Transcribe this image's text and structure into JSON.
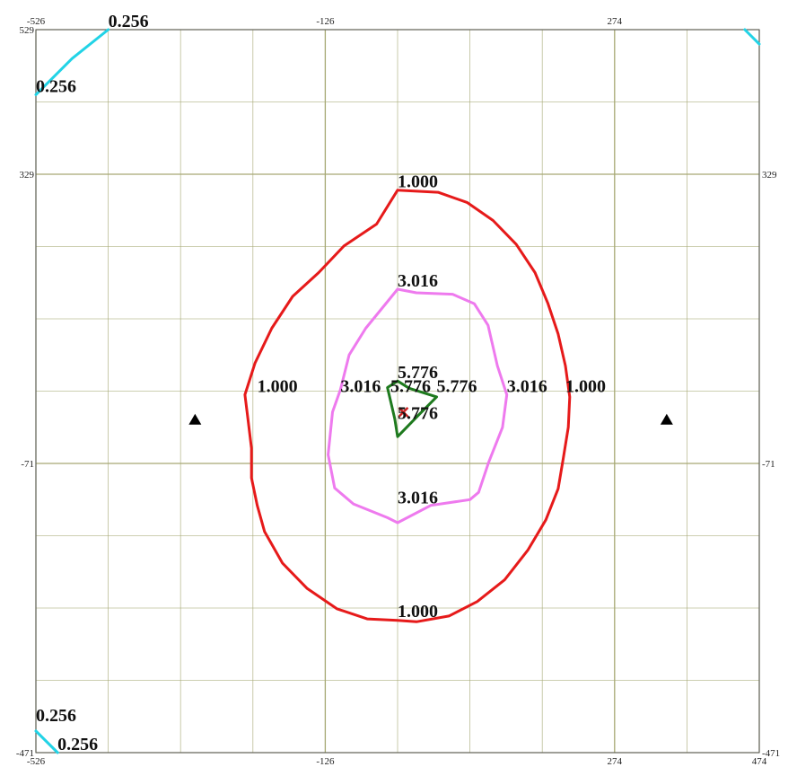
{
  "chart_data": {
    "type": "contour",
    "xlim": [
      -526,
      474
    ],
    "ylim": [
      -471,
      529
    ],
    "grid": true,
    "grid_color": "#a6a874",
    "x_tick_labels_top": [
      "-526",
      "-126",
      "274"
    ],
    "x_tick_labels_bottom": [
      "-526",
      "-126",
      "274",
      "474"
    ],
    "y_tick_labels_left": [
      "529",
      "329",
      "-71",
      "-471"
    ],
    "y_tick_labels_right": [
      "329",
      "-71",
      "-471"
    ],
    "contours": [
      {
        "level": "0.256",
        "color": "#22d3e6",
        "segments": [
          [
            [
              -426,
              529
            ],
            [
              -476,
              489
            ],
            [
              -526,
              439
            ]
          ],
          [
            [
              474,
              509
            ],
            [
              454,
              529
            ]
          ],
          [
            [
              -526,
              -441
            ],
            [
              -496,
              -471
            ]
          ]
        ],
        "labels": [
          {
            "text": "0.256",
            "x": -426,
            "y": 529
          },
          {
            "text": "0.256",
            "x": -526,
            "y": 439
          },
          {
            "text": "0.256",
            "x": -526,
            "y": -431
          },
          {
            "text": "0.256",
            "x": -496,
            "y": -471
          }
        ]
      },
      {
        "level": "1.000",
        "color": "#e61a1a",
        "points": [
          [
            -26,
            307
          ],
          [
            30,
            304
          ],
          [
            70,
            290
          ],
          [
            106,
            265
          ],
          [
            138,
            232
          ],
          [
            164,
            193
          ],
          [
            182,
            150
          ],
          [
            196,
            108
          ],
          [
            206,
            64
          ],
          [
            212,
            21
          ],
          [
            210,
            -21
          ],
          [
            203,
            -64
          ],
          [
            196,
            -106
          ],
          [
            179,
            -149
          ],
          [
            154,
            -191
          ],
          [
            122,
            -232
          ],
          [
            84,
            -262
          ],
          [
            45,
            -282
          ],
          [
            0,
            -290
          ],
          [
            -26,
            -288
          ],
          [
            -68,
            -286
          ],
          [
            -110,
            -272
          ],
          [
            -151,
            -244
          ],
          [
            -185,
            -209
          ],
          [
            -210,
            -165
          ],
          [
            -220,
            -129
          ],
          [
            -228,
            -91
          ],
          [
            -228,
            -50
          ],
          [
            -233,
            -9
          ],
          [
            -237,
            24
          ],
          [
            -223,
            68
          ],
          [
            -200,
            116
          ],
          [
            -171,
            160
          ],
          [
            -135,
            193
          ],
          [
            -100,
            230
          ],
          [
            -55,
            260
          ],
          [
            -26,
            307
          ]
        ],
        "labels": [
          {
            "text": "1.000",
            "x": -26,
            "y": 307
          },
          {
            "text": "1.000",
            "x": -220,
            "y": 24
          },
          {
            "text": "1.000",
            "x": 206,
            "y": 24
          },
          {
            "text": "1.000",
            "x": -26,
            "y": -287
          }
        ]
      },
      {
        "level": "3.016",
        "color": "#ee7aee",
        "points": [
          [
            -26,
            170
          ],
          [
            0,
            165
          ],
          [
            50,
            163
          ],
          [
            80,
            150
          ],
          [
            99,
            120
          ],
          [
            112,
            64
          ],
          [
            125,
            24
          ],
          [
            119,
            -21
          ],
          [
            100,
            -69
          ],
          [
            86,
            -111
          ],
          [
            74,
            -121
          ],
          [
            20,
            -129
          ],
          [
            -26,
            -153
          ],
          [
            -40,
            -146
          ],
          [
            -87,
            -127
          ],
          [
            -113,
            -105
          ],
          [
            -122,
            -59
          ],
          [
            -116,
            0
          ],
          [
            -105,
            31
          ],
          [
            -93,
            79
          ],
          [
            -70,
            116
          ],
          [
            -26,
            170
          ]
        ],
        "labels": [
          {
            "text": "3.016",
            "x": -26,
            "y": 170
          },
          {
            "text": "3.016",
            "x": -105,
            "y": 24
          },
          {
            "text": "3.016",
            "x": 125,
            "y": 24
          },
          {
            "text": "3.016",
            "x": -26,
            "y": -130
          }
        ]
      },
      {
        "level": "5.776",
        "color": "#1e7a1e",
        "points": [
          [
            -26,
            43
          ],
          [
            -40,
            34
          ],
          [
            -30,
            -9
          ],
          [
            -26,
            -34
          ],
          [
            4,
            -3
          ],
          [
            28,
            21
          ],
          [
            -10,
            33
          ],
          [
            -26,
            43
          ]
        ],
        "labels": [
          {
            "text": "5.776",
            "x": -26,
            "y": 43
          },
          {
            "text": "5.776",
            "x": -36,
            "y": 24
          },
          {
            "text": "5.776",
            "x": 28,
            "y": 24
          },
          {
            "text": "5.776",
            "x": -26,
            "y": -13
          }
        ]
      }
    ],
    "markers": [
      {
        "shape": "triangle",
        "color": "#000000",
        "x": -306,
        "y": -11
      },
      {
        "shape": "triangle",
        "color": "#000000",
        "x": 346,
        "y": -11
      },
      {
        "shape": "x-mark",
        "color": "#cc2222",
        "x": -18,
        "y": 0
      }
    ]
  }
}
